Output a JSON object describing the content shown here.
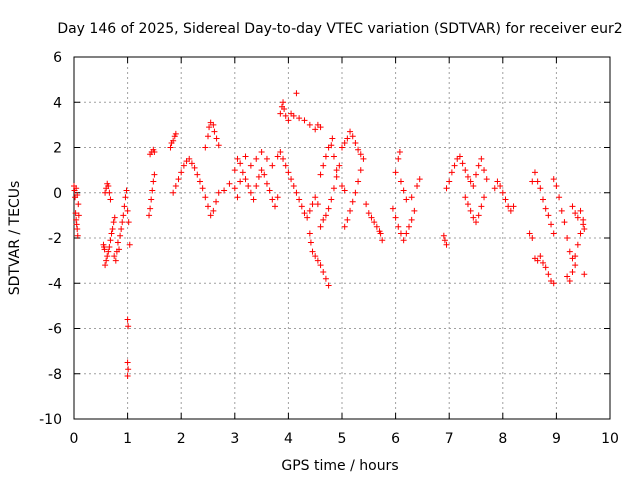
{
  "chart_data": {
    "type": "scatter",
    "title": "Day 146 of 2025, Sidereal Day-to-day VTEC variation (SDTVAR) for receiver eur2",
    "xlabel": "GPS time / hours",
    "ylabel": "SDTVAR / TECUs",
    "xlim": [
      0,
      10
    ],
    "ylim": [
      -10,
      6
    ],
    "x_ticks": [
      0,
      1,
      2,
      3,
      4,
      5,
      6,
      7,
      8,
      9,
      10
    ],
    "x_tick_labels": [
      "0",
      "1",
      "2",
      "3",
      "4",
      "5",
      "6",
      "7",
      "8",
      "9",
      "10"
    ],
    "y_ticks": [
      6,
      4,
      2,
      0,
      -2,
      -4,
      -6,
      -8,
      -10
    ],
    "y_tick_labels": [
      "6",
      "4",
      "2",
      "0",
      "-2",
      "-4",
      "-6",
      "-8",
      "-10"
    ],
    "grid": true,
    "marker": "+",
    "color": "#ff0000",
    "series": [
      {
        "name": "SDTVAR",
        "points": [
          [
            0.0,
            0.3
          ],
          [
            0.01,
            0.1
          ],
          [
            0.02,
            -0.2
          ],
          [
            0.03,
            -0.9
          ],
          [
            0.04,
            -1.2
          ],
          [
            0.05,
            -1.4
          ],
          [
            0.06,
            -1.6
          ],
          [
            0.07,
            -1.9
          ],
          [
            0.04,
            0.2
          ],
          [
            0.06,
            -0.1
          ],
          [
            0.08,
            -0.5
          ],
          [
            0.09,
            -1.0
          ],
          [
            0.55,
            -2.3
          ],
          [
            0.56,
            -2.4
          ],
          [
            0.57,
            -2.5
          ],
          [
            0.58,
            -3.2
          ],
          [
            0.6,
            -3.0
          ],
          [
            0.62,
            -2.8
          ],
          [
            0.64,
            -2.6
          ],
          [
            0.66,
            -2.4
          ],
          [
            0.68,
            -2.1
          ],
          [
            0.7,
            -1.8
          ],
          [
            0.72,
            -1.6
          ],
          [
            0.74,
            -1.3
          ],
          [
            0.76,
            -1.1
          ],
          [
            0.58,
            0.0
          ],
          [
            0.6,
            0.2
          ],
          [
            0.62,
            0.4
          ],
          [
            0.64,
            0.3
          ],
          [
            0.66,
            0.0
          ],
          [
            0.68,
            -0.3
          ],
          [
            0.75,
            -2.8
          ],
          [
            0.78,
            -3.0
          ],
          [
            0.8,
            -2.6
          ],
          [
            0.82,
            -2.2
          ],
          [
            0.84,
            -2.5
          ],
          [
            0.86,
            -1.9
          ],
          [
            0.88,
            -1.6
          ],
          [
            0.9,
            -1.3
          ],
          [
            0.92,
            -1.0
          ],
          [
            0.94,
            -0.6
          ],
          [
            0.96,
            -0.2
          ],
          [
            0.98,
            0.1
          ],
          [
            1.0,
            -0.8
          ],
          [
            1.02,
            -1.3
          ],
          [
            1.04,
            -2.3
          ],
          [
            1.0,
            -5.6
          ],
          [
            1.01,
            -5.9
          ],
          [
            1.0,
            -7.5
          ],
          [
            1.01,
            -7.8
          ],
          [
            1.0,
            -8.1
          ],
          [
            1.4,
            -1.0
          ],
          [
            1.42,
            -0.7
          ],
          [
            1.44,
            -0.3
          ],
          [
            1.46,
            0.1
          ],
          [
            1.48,
            0.5
          ],
          [
            1.5,
            0.8
          ],
          [
            1.42,
            1.7
          ],
          [
            1.45,
            1.8
          ],
          [
            1.48,
            1.9
          ],
          [
            1.5,
            1.8
          ],
          [
            1.8,
            2.0
          ],
          [
            1.82,
            2.2
          ],
          [
            1.85,
            2.3
          ],
          [
            1.88,
            2.5
          ],
          [
            1.9,
            2.6
          ],
          [
            1.85,
            0.0
          ],
          [
            1.9,
            0.3
          ],
          [
            1.95,
            0.6
          ],
          [
            2.0,
            0.9
          ],
          [
            2.05,
            1.2
          ],
          [
            2.1,
            1.4
          ],
          [
            2.15,
            1.5
          ],
          [
            2.2,
            1.3
          ],
          [
            2.25,
            1.1
          ],
          [
            2.3,
            0.8
          ],
          [
            2.35,
            0.5
          ],
          [
            2.4,
            0.2
          ],
          [
            2.45,
            -0.2
          ],
          [
            2.5,
            -0.6
          ],
          [
            2.55,
            -1.0
          ],
          [
            2.6,
            -0.8
          ],
          [
            2.65,
            -0.4
          ],
          [
            2.7,
            0.0
          ],
          [
            2.45,
            2.0
          ],
          [
            2.5,
            2.5
          ],
          [
            2.52,
            2.9
          ],
          [
            2.55,
            3.1
          ],
          [
            2.6,
            3.0
          ],
          [
            2.62,
            2.7
          ],
          [
            2.66,
            2.4
          ],
          [
            2.7,
            2.1
          ],
          [
            2.8,
            0.1
          ],
          [
            2.9,
            0.4
          ],
          [
            3.0,
            0.2
          ],
          [
            3.05,
            -0.2
          ],
          [
            3.1,
            0.5
          ],
          [
            3.15,
            0.9
          ],
          [
            3.2,
            0.6
          ],
          [
            3.25,
            0.3
          ],
          [
            3.3,
            0.0
          ],
          [
            3.35,
            -0.3
          ],
          [
            3.4,
            0.3
          ],
          [
            3.45,
            0.7
          ],
          [
            3.5,
            1.0
          ],
          [
            3.55,
            0.8
          ],
          [
            3.6,
            0.4
          ],
          [
            3.65,
            0.1
          ],
          [
            3.7,
            -0.3
          ],
          [
            3.75,
            -0.6
          ],
          [
            3.8,
            -0.2
          ],
          [
            3.0,
            1.0
          ],
          [
            3.05,
            1.5
          ],
          [
            3.1,
            1.3
          ],
          [
            3.2,
            1.6
          ],
          [
            3.3,
            1.2
          ],
          [
            3.4,
            1.5
          ],
          [
            3.5,
            1.8
          ],
          [
            3.6,
            1.5
          ],
          [
            3.7,
            1.2
          ],
          [
            3.8,
            1.6
          ],
          [
            3.85,
            3.5
          ],
          [
            3.88,
            3.8
          ],
          [
            3.9,
            4.0
          ],
          [
            3.92,
            3.7
          ],
          [
            3.95,
            3.4
          ],
          [
            4.0,
            3.2
          ],
          [
            4.05,
            3.5
          ],
          [
            4.1,
            3.4
          ],
          [
            4.15,
            4.4
          ],
          [
            4.2,
            3.3
          ],
          [
            4.3,
            3.2
          ],
          [
            4.4,
            3.0
          ],
          [
            4.5,
            2.8
          ],
          [
            4.55,
            3.0
          ],
          [
            4.6,
            2.9
          ],
          [
            3.85,
            1.8
          ],
          [
            3.9,
            1.5
          ],
          [
            3.95,
            1.2
          ],
          [
            4.0,
            0.9
          ],
          [
            4.05,
            0.6
          ],
          [
            4.1,
            0.3
          ],
          [
            4.15,
            0.0
          ],
          [
            4.2,
            -0.3
          ],
          [
            4.25,
            -0.6
          ],
          [
            4.3,
            -0.9
          ],
          [
            4.35,
            -1.1
          ],
          [
            4.4,
            -0.8
          ],
          [
            4.45,
            -0.5
          ],
          [
            4.5,
            -0.2
          ],
          [
            4.55,
            -0.5
          ],
          [
            4.4,
            -1.8
          ],
          [
            4.42,
            -2.2
          ],
          [
            4.45,
            -2.6
          ],
          [
            4.5,
            -2.8
          ],
          [
            4.55,
            -3.0
          ],
          [
            4.6,
            -3.2
          ],
          [
            4.65,
            -3.5
          ],
          [
            4.7,
            -3.8
          ],
          [
            4.75,
            -4.1
          ],
          [
            4.6,
            -1.5
          ],
          [
            4.65,
            -1.2
          ],
          [
            4.7,
            -1.0
          ],
          [
            4.75,
            -0.7
          ],
          [
            4.8,
            -0.3
          ],
          [
            4.85,
            0.2
          ],
          [
            4.9,
            0.7
          ],
          [
            4.95,
            1.2
          ],
          [
            4.6,
            0.8
          ],
          [
            4.65,
            1.2
          ],
          [
            4.7,
            1.6
          ],
          [
            4.75,
            2.0
          ],
          [
            4.8,
            2.1
          ],
          [
            4.82,
            2.4
          ],
          [
            4.85,
            1.6
          ],
          [
            4.9,
            1.0
          ],
          [
            5.05,
            -1.5
          ],
          [
            5.1,
            -1.2
          ],
          [
            5.15,
            -0.8
          ],
          [
            5.2,
            -0.4
          ],
          [
            5.25,
            0.0
          ],
          [
            5.3,
            0.5
          ],
          [
            5.35,
            1.0
          ],
          [
            5.0,
            2.0
          ],
          [
            5.05,
            2.2
          ],
          [
            5.1,
            2.4
          ],
          [
            5.15,
            2.7
          ],
          [
            5.2,
            2.5
          ],
          [
            5.25,
            2.2
          ],
          [
            5.3,
            1.9
          ],
          [
            5.35,
            1.7
          ],
          [
            5.4,
            1.5
          ],
          [
            5.0,
            0.3
          ],
          [
            5.05,
            0.1
          ],
          [
            5.45,
            -0.5
          ],
          [
            5.5,
            -0.9
          ],
          [
            5.55,
            -1.1
          ],
          [
            5.6,
            -1.3
          ],
          [
            5.65,
            -1.5
          ],
          [
            5.7,
            -1.7
          ],
          [
            5.75,
            -2.1
          ],
          [
            5.72,
            -1.8
          ],
          [
            5.95,
            -0.7
          ],
          [
            6.0,
            -1.1
          ],
          [
            6.05,
            -1.5
          ],
          [
            6.1,
            -1.8
          ],
          [
            6.15,
            -2.1
          ],
          [
            6.2,
            -1.8
          ],
          [
            6.25,
            -1.5
          ],
          [
            6.3,
            -1.2
          ],
          [
            6.35,
            -0.8
          ],
          [
            6.0,
            0.9
          ],
          [
            6.05,
            1.5
          ],
          [
            6.08,
            1.8
          ],
          [
            6.1,
            0.5
          ],
          [
            6.15,
            0.1
          ],
          [
            6.2,
            -0.3
          ],
          [
            6.3,
            -0.2
          ],
          [
            6.4,
            0.3
          ],
          [
            6.45,
            0.6
          ],
          [
            6.9,
            -1.9
          ],
          [
            6.92,
            -2.1
          ],
          [
            6.95,
            -2.3
          ],
          [
            6.95,
            0.2
          ],
          [
            7.0,
            0.5
          ],
          [
            7.05,
            0.9
          ],
          [
            7.1,
            1.2
          ],
          [
            7.15,
            1.5
          ],
          [
            7.2,
            1.6
          ],
          [
            7.25,
            1.3
          ],
          [
            7.3,
            1.0
          ],
          [
            7.35,
            0.7
          ],
          [
            7.4,
            0.5
          ],
          [
            7.45,
            0.3
          ],
          [
            7.3,
            -0.2
          ],
          [
            7.35,
            -0.5
          ],
          [
            7.4,
            -0.8
          ],
          [
            7.45,
            -1.1
          ],
          [
            7.5,
            -1.3
          ],
          [
            7.55,
            -1.0
          ],
          [
            7.6,
            -0.6
          ],
          [
            7.65,
            -0.2
          ],
          [
            7.5,
            0.8
          ],
          [
            7.55,
            1.2
          ],
          [
            7.6,
            1.5
          ],
          [
            7.65,
            1.0
          ],
          [
            7.7,
            0.6
          ],
          [
            7.85,
            0.2
          ],
          [
            7.9,
            0.5
          ],
          [
            7.95,
            0.3
          ],
          [
            8.0,
            0.0
          ],
          [
            8.05,
            -0.3
          ],
          [
            8.1,
            -0.6
          ],
          [
            8.15,
            -0.8
          ],
          [
            8.2,
            -0.6
          ],
          [
            8.5,
            -1.8
          ],
          [
            8.55,
            -2.0
          ],
          [
            8.6,
            -2.9
          ],
          [
            8.65,
            -3.0
          ],
          [
            8.7,
            -2.8
          ],
          [
            8.75,
            -3.1
          ],
          [
            8.8,
            -3.3
          ],
          [
            8.85,
            -3.6
          ],
          [
            8.9,
            -3.9
          ],
          [
            8.95,
            -4.0
          ],
          [
            8.55,
            0.5
          ],
          [
            8.6,
            0.9
          ],
          [
            8.65,
            0.5
          ],
          [
            8.7,
            0.2
          ],
          [
            8.75,
            -0.3
          ],
          [
            8.8,
            -0.7
          ],
          [
            8.85,
            -1.0
          ],
          [
            8.9,
            -1.4
          ],
          [
            8.95,
            -1.8
          ],
          [
            8.95,
            0.6
          ],
          [
            9.0,
            0.3
          ],
          [
            9.05,
            -0.2
          ],
          [
            9.1,
            -0.8
          ],
          [
            9.15,
            -1.3
          ],
          [
            9.2,
            -2.0
          ],
          [
            9.25,
            -2.6
          ],
          [
            9.3,
            -2.9
          ],
          [
            9.35,
            -3.2
          ],
          [
            9.2,
            -3.7
          ],
          [
            9.25,
            -3.9
          ],
          [
            9.3,
            -3.5
          ],
          [
            9.35,
            -2.8
          ],
          [
            9.4,
            -2.3
          ],
          [
            9.45,
            -1.8
          ],
          [
            9.5,
            -1.4
          ],
          [
            9.52,
            -3.6
          ],
          [
            9.3,
            -0.6
          ],
          [
            9.35,
            -0.9
          ],
          [
            9.4,
            -1.1
          ],
          [
            9.45,
            -0.8
          ],
          [
            9.5,
            -1.2
          ],
          [
            9.52,
            -1.6
          ]
        ]
      }
    ]
  }
}
